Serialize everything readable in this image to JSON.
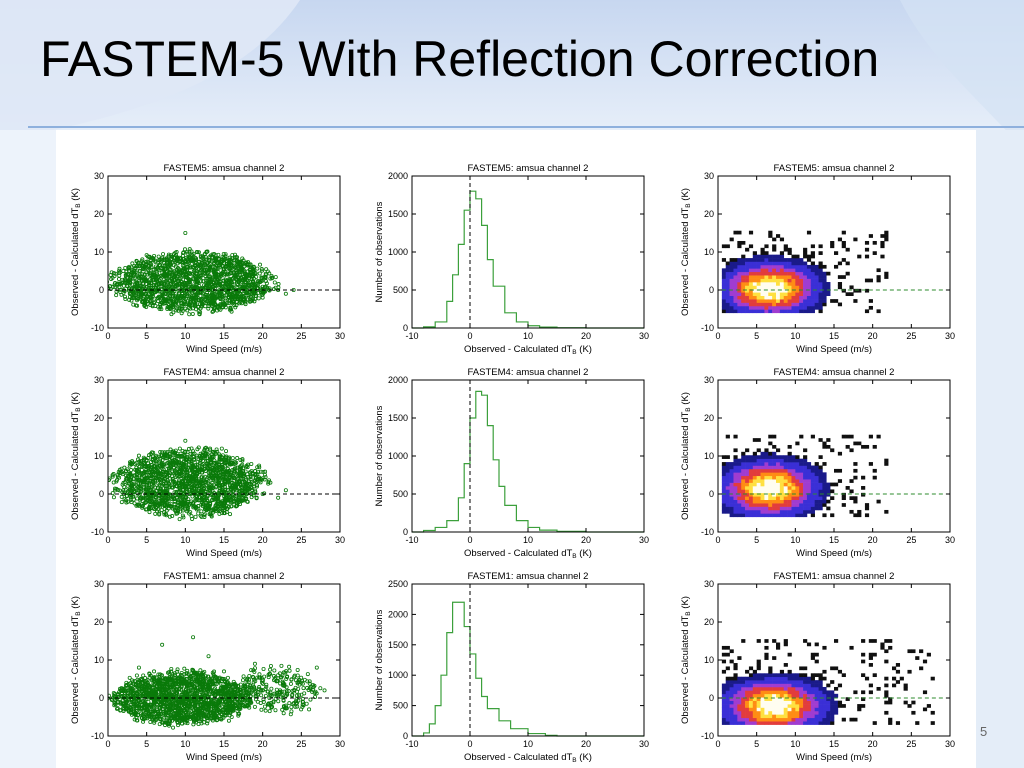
{
  "slide": {
    "title": "FASTEM-5 With Reflection Correction",
    "page_number": "5"
  },
  "colors": {
    "scatter": "#0a7a0a",
    "histogram": "#3ca03c",
    "zero_line": "#000000",
    "density_ref_line": "#2e8b2e",
    "density_palette": [
      "#ffffff",
      "#1a1a8a",
      "#3a2fd6",
      "#a03cd0",
      "#e23c3c",
      "#ff8c14",
      "#ffe040",
      "#fffdf0"
    ]
  },
  "chart_data": [
    {
      "type": "scatter",
      "title": "FASTEM5: amsua channel 2",
      "xlabel": "Wind Speed (m/s)",
      "ylabel": "Observed - Calculated dT",
      "ylabel_sub": "B",
      "ylabel_unit": " (K)",
      "xlim": [
        0,
        30
      ],
      "ylim": [
        -10,
        30
      ],
      "xticks": [
        "0",
        "5",
        "10",
        "15",
        "20",
        "25",
        "30"
      ],
      "yticks": [
        "-10",
        "0",
        "10",
        "20",
        "30"
      ],
      "points": [
        [
          2,
          0
        ],
        [
          3,
          4
        ],
        [
          5,
          -3
        ],
        [
          6,
          2
        ],
        [
          7,
          8
        ],
        [
          8,
          -5
        ],
        [
          9,
          3
        ],
        [
          10,
          15
        ],
        [
          11,
          -2
        ],
        [
          12,
          6
        ],
        [
          13,
          1
        ],
        [
          14,
          -4
        ],
        [
          15,
          7
        ],
        [
          16,
          2
        ],
        [
          17,
          -1
        ],
        [
          18,
          4
        ],
        [
          19,
          1
        ],
        [
          20,
          -2
        ],
        [
          21,
          3
        ],
        [
          22,
          0
        ],
        [
          23,
          -1
        ],
        [
          24,
          0
        ]
      ],
      "cloud": [
        {
          "x": [
            1,
            21
          ],
          "y": [
            -7,
            11
          ]
        }
      ],
      "zero_line": true
    },
    {
      "type": "histogram",
      "title": "FASTEM5: amsua channel 2",
      "xlabel": "Observed - Calculated dT",
      "xlabel_sub": "B",
      "xlabel_unit": " (K)",
      "ylabel": "Number of observations",
      "xlim": [
        -10,
        30
      ],
      "ylim": [
        0,
        2000
      ],
      "xticks": [
        "-10",
        "0",
        "10",
        "20",
        "30"
      ],
      "yticks": [
        "0",
        "500",
        "1000",
        "1500",
        "2000"
      ],
      "x": [
        -10,
        -8,
        -6,
        -4,
        -3,
        -2,
        -1,
        0,
        1,
        2,
        3,
        4,
        6,
        8,
        10,
        12,
        15,
        20,
        25,
        30
      ],
      "counts": [
        0,
        15,
        80,
        350,
        700,
        1100,
        1550,
        1800,
        1700,
        1350,
        900,
        550,
        200,
        80,
        30,
        12,
        4,
        0,
        0,
        0
      ],
      "zero_line_x": 0
    },
    {
      "type": "heatmap",
      "title": "FASTEM5: amsua channel 2",
      "xlabel": "Wind Speed (m/s)",
      "ylabel": "Observed - Calculated dT",
      "ylabel_sub": "B",
      "ylabel_unit": " (K)",
      "xlim": [
        0,
        30
      ],
      "ylim": [
        -10,
        30
      ],
      "xticks": [
        "0",
        "5",
        "10",
        "15",
        "20",
        "25",
        "30"
      ],
      "yticks": [
        "-10",
        "0",
        "10",
        "20",
        "30"
      ],
      "density_center": [
        6.5,
        0.0
      ],
      "density_spread": [
        3.2,
        3.6
      ],
      "extent_x": [
        0.5,
        22
      ],
      "extent_y": [
        -6,
        15
      ],
      "ref_line": true
    },
    {
      "type": "scatter",
      "title": "FASTEM4: amsua channel 2",
      "xlabel": "Wind Speed (m/s)",
      "ylabel": "Observed - Calculated dT",
      "ylabel_sub": "B",
      "ylabel_unit": " (K)",
      "xlim": [
        0,
        30
      ],
      "ylim": [
        -10,
        30
      ],
      "xticks": [
        "0",
        "5",
        "10",
        "15",
        "20",
        "25",
        "30"
      ],
      "yticks": [
        "-10",
        "0",
        "10",
        "20",
        "30"
      ],
      "points": [
        [
          2,
          1
        ],
        [
          4,
          6
        ],
        [
          5,
          -4
        ],
        [
          7,
          11
        ],
        [
          8,
          -6
        ],
        [
          10,
          14
        ],
        [
          11,
          -3
        ],
        [
          12,
          9
        ],
        [
          14,
          2
        ],
        [
          15,
          -5
        ],
        [
          16,
          8
        ],
        [
          17,
          3
        ],
        [
          18,
          -2
        ],
        [
          19,
          5
        ],
        [
          20,
          0
        ],
        [
          21,
          3
        ],
        [
          22,
          -1
        ],
        [
          23,
          1
        ]
      ],
      "cloud": [
        {
          "x": [
            1,
            20
          ],
          "y": [
            -7,
            13
          ]
        }
      ],
      "zero_line": true
    },
    {
      "type": "histogram",
      "title": "FASTEM4: amsua channel 2",
      "xlabel": "Observed - Calculated dT",
      "xlabel_sub": "B",
      "xlabel_unit": " (K)",
      "ylabel": "Number of observations",
      "xlim": [
        -10,
        30
      ],
      "ylim": [
        0,
        2000
      ],
      "xticks": [
        "-10",
        "0",
        "10",
        "20",
        "30"
      ],
      "yticks": [
        "0",
        "500",
        "1000",
        "1500",
        "2000"
      ],
      "x": [
        -10,
        -8,
        -6,
        -4,
        -2,
        -1,
        0,
        1,
        2,
        3,
        4,
        5,
        6,
        8,
        10,
        12,
        15,
        20,
        25,
        30
      ],
      "counts": [
        0,
        20,
        60,
        150,
        450,
        900,
        1500,
        1850,
        1800,
        1400,
        950,
        600,
        350,
        150,
        60,
        25,
        8,
        0,
        0,
        0
      ],
      "zero_line_x": 0
    },
    {
      "type": "heatmap",
      "title": "FASTEM4: amsua channel 2",
      "xlabel": "Wind Speed (m/s)",
      "ylabel": "Observed - Calculated dT",
      "ylabel_sub": "B",
      "ylabel_unit": " (K)",
      "xlim": [
        0,
        30
      ],
      "ylim": [
        -10,
        30
      ],
      "xticks": [
        "0",
        "5",
        "10",
        "15",
        "20",
        "25",
        "30"
      ],
      "yticks": [
        "-10",
        "0",
        "10",
        "20",
        "30"
      ],
      "density_center": [
        6.5,
        1.0
      ],
      "density_spread": [
        3.2,
        3.8
      ],
      "extent_x": [
        0.5,
        22
      ],
      "extent_y": [
        -6,
        15
      ],
      "ref_line": true
    },
    {
      "type": "scatter",
      "title": "FASTEM1: amsua channel 2",
      "xlabel": "Wind Speed (m/s)",
      "ylabel": "Observed - Calculated dT",
      "ylabel_sub": "B",
      "ylabel_unit": " (K)",
      "xlim": [
        0,
        30
      ],
      "ylim": [
        -10,
        30
      ],
      "xticks": [
        "0",
        "5",
        "10",
        "15",
        "20",
        "25",
        "30"
      ],
      "yticks": [
        "-10",
        "0",
        "10",
        "20",
        "30"
      ],
      "points": [
        [
          2,
          -2
        ],
        [
          4,
          8
        ],
        [
          6,
          -6
        ],
        [
          7,
          14
        ],
        [
          9,
          -4
        ],
        [
          11,
          16
        ],
        [
          12,
          -3
        ],
        [
          13,
          11
        ],
        [
          15,
          7
        ],
        [
          16,
          -5
        ],
        [
          18,
          5
        ],
        [
          19,
          9
        ],
        [
          20,
          2
        ],
        [
          22,
          6
        ],
        [
          23,
          -2
        ],
        [
          25,
          4
        ],
        [
          26,
          -3
        ],
        [
          27,
          8
        ],
        [
          28,
          2
        ]
      ],
      "cloud": [
        {
          "x": [
            1,
            18
          ],
          "y": [
            -8,
            8
          ]
        },
        {
          "x": [
            16,
            27
          ],
          "y": [
            -5,
            9
          ]
        }
      ],
      "zero_line": true
    },
    {
      "type": "histogram",
      "title": "FASTEM1: amsua channel 2",
      "xlabel": "Observed - Calculated dT",
      "xlabel_sub": "B",
      "xlabel_unit": " (K)",
      "ylabel": "Number of observations",
      "xlim": [
        -10,
        30
      ],
      "ylim": [
        0,
        2500
      ],
      "xticks": [
        "-10",
        "0",
        "10",
        "20",
        "30"
      ],
      "yticks": [
        "0",
        "500",
        "1000",
        "1500",
        "2000",
        "2500"
      ],
      "x": [
        -10,
        -8,
        -7,
        -6,
        -5,
        -4,
        -3,
        -2,
        -1,
        0,
        1,
        2,
        3,
        5,
        7,
        10,
        13,
        15,
        20,
        30
      ],
      "counts": [
        0,
        50,
        200,
        500,
        1000,
        1700,
        2200,
        2200,
        1800,
        1350,
        950,
        650,
        450,
        250,
        120,
        40,
        10,
        0,
        0,
        0
      ],
      "zero_line_x": 0
    },
    {
      "type": "heatmap",
      "title": "FASTEM1: amsua channel 2",
      "xlabel": "Wind Speed (m/s)",
      "ylabel": "Observed - Calculated dT",
      "ylabel_sub": "B",
      "ylabel_unit": " (K)",
      "xlim": [
        0,
        30
      ],
      "ylim": [
        -10,
        30
      ],
      "xticks": [
        "0",
        "5",
        "10",
        "15",
        "20",
        "25",
        "30"
      ],
      "yticks": [
        "-10",
        "0",
        "10",
        "20",
        "30"
      ],
      "density_center": [
        7.0,
        -2.5
      ],
      "density_spread": [
        3.4,
        3.6
      ],
      "extent_x": [
        0.5,
        28
      ],
      "extent_y": [
        -7,
        15
      ],
      "ref_line": true
    }
  ]
}
